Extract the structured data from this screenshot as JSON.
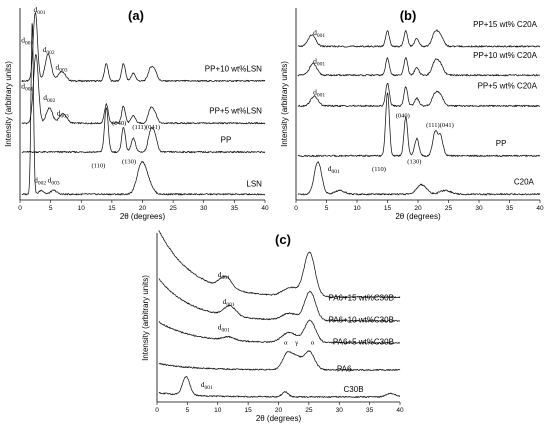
{
  "chart_data": [
    {
      "panel": "(a)",
      "type": "line",
      "xlabel": "2θ (degrees)",
      "ylabel": "Intensity (arbitrary units)",
      "xlim": [
        0,
        40
      ],
      "xticks": [
        0,
        5,
        10,
        15,
        20,
        25,
        30,
        35,
        40
      ],
      "series": [
        {
          "name": "PP+10 wt%LSN",
          "baseline": 0.62,
          "peaks": [
            [
              2.5,
              0.36,
              0.35
            ],
            [
              4.6,
              0.14,
              0.5
            ],
            [
              6.8,
              0.05,
              0.6
            ],
            [
              14.1,
              0.09,
              0.3
            ],
            [
              16.9,
              0.09,
              0.3
            ],
            [
              18.5,
              0.04,
              0.35
            ],
            [
              21.3,
              0.06,
              0.4
            ],
            [
              22.0,
              0.05,
              0.4
            ]
          ]
        },
        {
          "name": "PP+5 wt%LSN",
          "baseline": 0.4,
          "peaks": [
            [
              2.6,
              0.36,
              0.4
            ],
            [
              4.8,
              0.08,
              0.5
            ],
            [
              7.0,
              0.05,
              0.6
            ],
            [
              14.1,
              0.1,
              0.3
            ],
            [
              16.9,
              0.09,
              0.3
            ],
            [
              18.5,
              0.04,
              0.35
            ],
            [
              21.3,
              0.07,
              0.4
            ],
            [
              22.0,
              0.05,
              0.4
            ]
          ]
        },
        {
          "name": "PP",
          "baseline": 0.25,
          "peaks": [
            [
              14.1,
              0.23,
              0.3
            ],
            [
              16.9,
              0.13,
              0.3
            ],
            [
              18.5,
              0.07,
              0.35
            ],
            [
              21.3,
              0.1,
              0.4
            ],
            [
              22.0,
              0.08,
              0.4
            ]
          ]
        },
        {
          "name": "LSN",
          "baseline": 0.03,
          "peaks": [
            [
              2.0,
              0.9,
              0.2
            ],
            [
              3.5,
              0.02,
              0.4
            ],
            [
              5.5,
              0.02,
              0.5
            ],
            [
              19.8,
              0.15,
              0.7
            ],
            [
              20.9,
              0.06,
              0.7
            ]
          ]
        }
      ],
      "annotations": [
        {
          "text": "d001",
          "x": 2.2,
          "y": 0.98
        },
        {
          "text": "d001",
          "x": 0.2,
          "y": 0.82
        },
        {
          "text": "d002",
          "x": 3.7,
          "y": 0.77
        },
        {
          "text": "d003",
          "x": 5.8,
          "y": 0.68
        },
        {
          "text": "d001",
          "x": 0.2,
          "y": 0.58
        },
        {
          "text": "d002",
          "x": 3.8,
          "y": 0.52
        },
        {
          "text": "d003",
          "x": 6.0,
          "y": 0.44
        },
        {
          "text": "(040)",
          "x": 16.2,
          "y": 0.39
        },
        {
          "text": "(111)(041)",
          "x": 20.6,
          "y": 0.37
        },
        {
          "text": "(110)",
          "x": 12.8,
          "y": 0.17
        },
        {
          "text": "(130)",
          "x": 17.8,
          "y": 0.19
        },
        {
          "text": "d002",
          "x": 2.3,
          "y": 0.09
        },
        {
          "text": "d003",
          "x": 4.5,
          "y": 0.09
        }
      ],
      "legend_labels": [
        {
          "text": "PP+10 wt%LSN",
          "x": 39.5,
          "y": 0.67
        },
        {
          "text": "PP+5 wt%LSN",
          "x": 39.5,
          "y": 0.45
        },
        {
          "text": "PP",
          "x": 34.5,
          "y": 0.3
        },
        {
          "text": "LSN",
          "x": 39.5,
          "y": 0.07
        }
      ]
    },
    {
      "panel": "(b)",
      "type": "line",
      "xlabel": "2θ (degrees)",
      "ylabel": "Intensity (arbitrary units)",
      "xlim": [
        0,
        40
      ],
      "xticks": [
        0,
        5,
        10,
        15,
        20,
        25,
        30,
        35,
        40
      ],
      "series": [
        {
          "name": "PP+15 wt%C20A",
          "baseline": 0.8,
          "peaks": [
            [
              2.6,
              0.06,
              0.6
            ],
            [
              15.0,
              0.08,
              0.3
            ],
            [
              18.0,
              0.08,
              0.3
            ],
            [
              19.8,
              0.04,
              0.35
            ],
            [
              22.8,
              0.07,
              0.5
            ],
            [
              23.7,
              0.05,
              0.5
            ]
          ]
        },
        {
          "name": "PP+10 wt%C20A",
          "baseline": 0.65,
          "peaks": [
            [
              2.8,
              0.06,
              0.6
            ],
            [
              15.0,
              0.09,
              0.3
            ],
            [
              18.0,
              0.09,
              0.3
            ],
            [
              19.8,
              0.04,
              0.35
            ],
            [
              22.8,
              0.07,
              0.5
            ],
            [
              23.7,
              0.05,
              0.5
            ]
          ]
        },
        {
          "name": "PP+5 wt%C20A",
          "baseline": 0.49,
          "peaks": [
            [
              3.0,
              0.05,
              0.6
            ],
            [
              15.0,
              0.12,
              0.3
            ],
            [
              18.0,
              0.1,
              0.3
            ],
            [
              19.8,
              0.04,
              0.35
            ],
            [
              22.8,
              0.06,
              0.5
            ],
            [
              23.7,
              0.05,
              0.5
            ]
          ]
        },
        {
          "name": "PP",
          "baseline": 0.23,
          "peaks": [
            [
              15.0,
              0.33,
              0.3
            ],
            [
              18.0,
              0.2,
              0.3
            ],
            [
              19.8,
              0.09,
              0.35
            ],
            [
              22.8,
              0.12,
              0.4
            ],
            [
              23.7,
              0.1,
              0.4
            ]
          ]
        },
        {
          "name": "C20A",
          "baseline": 0.03,
          "peaks": [
            [
              3.6,
              0.17,
              0.6
            ],
            [
              7.2,
              0.02,
              0.8
            ],
            [
              20.6,
              0.05,
              0.8
            ],
            [
              24.5,
              0.02,
              0.9
            ]
          ]
        }
      ],
      "annotations": [
        {
          "text": "d001",
          "x": 2.8,
          "y": 0.86
        },
        {
          "text": "d001",
          "x": 2.8,
          "y": 0.71
        },
        {
          "text": "d001",
          "x": 2.8,
          "y": 0.55
        },
        {
          "text": "(040)",
          "x": 17.5,
          "y": 0.43
        },
        {
          "text": "(111)(041)",
          "x": 23.6,
          "y": 0.38
        },
        {
          "text": "(110)",
          "x": 13.6,
          "y": 0.15
        },
        {
          "text": "(130)",
          "x": 19.4,
          "y": 0.19
        },
        {
          "text": "d001",
          "x": 5.2,
          "y": 0.15
        }
      ],
      "legend_labels": [
        {
          "text": "PP+15 wt% C20A",
          "x": 39.5,
          "y": 0.9
        },
        {
          "text": "PP+10 wt% C20A",
          "x": 39.5,
          "y": 0.74
        },
        {
          "text": "PP+5 wt% C20A",
          "x": 39.5,
          "y": 0.58
        },
        {
          "text": "PP",
          "x": 34.5,
          "y": 0.28
        },
        {
          "text": "C20A",
          "x": 39.0,
          "y": 0.08
        }
      ]
    },
    {
      "panel": "(c)",
      "type": "line",
      "xlabel": "2θ (degrees)",
      "ylabel": "Intensity (arbitrary units)",
      "xlim": [
        0,
        40
      ],
      "xticks": [
        0,
        5,
        10,
        15,
        20,
        25,
        30,
        35,
        40
      ],
      "series": [
        {
          "name": "PA6+15 wt%C30B",
          "baseline": 0.62,
          "decay": 0.32,
          "peaks": [
            [
              11.3,
              0.07,
              1.0
            ],
            [
              22.0,
              0.05,
              1.2
            ],
            [
              25.1,
              0.26,
              0.9
            ]
          ]
        },
        {
          "name": "PA6+10 wt%C30B",
          "baseline": 0.48,
          "decay": 0.2,
          "peaks": [
            [
              12.0,
              0.06,
              1.0
            ],
            [
              21.8,
              0.04,
              1.2
            ],
            [
              25.2,
              0.17,
              0.9
            ]
          ]
        },
        {
          "name": "PA6+5 wt%C30B",
          "baseline": 0.35,
          "decay": 0.1,
          "peaks": [
            [
              11.8,
              0.02,
              1.0
            ],
            [
              21.8,
              0.06,
              1.2
            ],
            [
              25.2,
              0.13,
              0.9
            ]
          ]
        },
        {
          "name": "PA6",
          "baseline": 0.19,
          "decay": 0.03,
          "peaks": [
            [
              21.5,
              0.1,
              0.8
            ],
            [
              23.0,
              0.06,
              0.7
            ],
            [
              25.0,
              0.11,
              0.9
            ]
          ]
        },
        {
          "name": "C30B",
          "baseline": 0.03,
          "decay": 0.02,
          "peaks": [
            [
              4.8,
              0.11,
              0.6
            ],
            [
              21.1,
              0.03,
              0.5
            ],
            [
              38.5,
              0.02,
              0.8
            ]
          ]
        }
      ],
      "annotations": [
        {
          "text": "d001",
          "x": 10.0,
          "y": 0.74
        },
        {
          "text": "d001",
          "x": 10.8,
          "y": 0.58
        },
        {
          "text": "d001",
          "x": 10.0,
          "y": 0.43
        },
        {
          "text": "α",
          "x": 21.2,
          "y": 0.34
        },
        {
          "text": "γ",
          "x": 23.0,
          "y": 0.34
        },
        {
          "text": "α",
          "x": 25.6,
          "y": 0.34
        },
        {
          "text": "d001",
          "x": 7.2,
          "y": 0.09
        }
      ],
      "legend_labels": [
        {
          "text": "PA6+15 wt%C30B",
          "x": 39.0,
          "y": 0.6
        },
        {
          "text": "PA6+10 wt%C30B",
          "x": 39.0,
          "y": 0.47
        },
        {
          "text": "PA6+5  wt%C30B",
          "x": 39.0,
          "y": 0.34
        },
        {
          "text": "PA6",
          "x": 32.0,
          "y": 0.18
        },
        {
          "text": "C30B",
          "x": 34.0,
          "y": 0.06
        }
      ]
    }
  ]
}
